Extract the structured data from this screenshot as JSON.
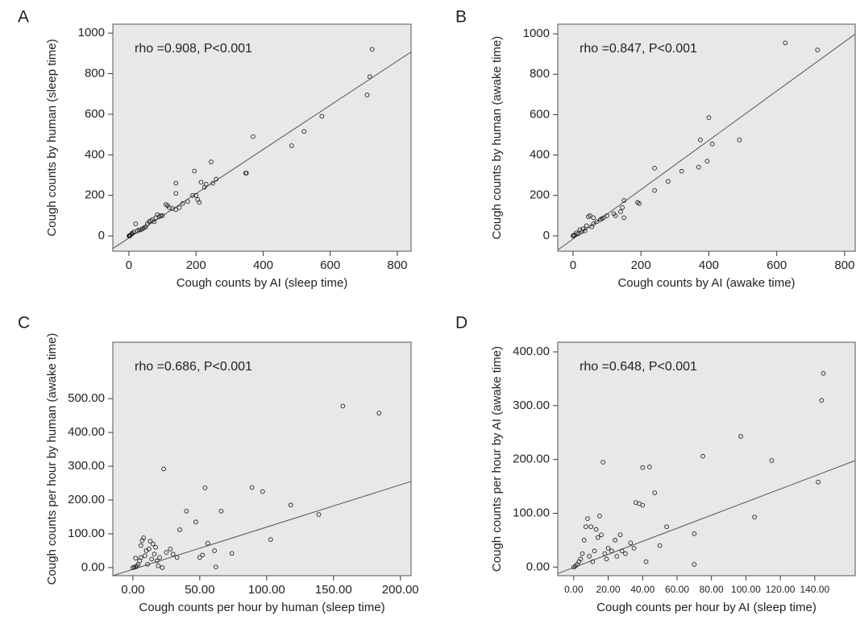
{
  "chart_data": [
    {
      "type": "scatter",
      "panel": "A",
      "annotation": "rho =0.908, P<0.001",
      "xlabel": "Cough counts by AI (sleep time)",
      "ylabel": "Cough counts by human (sleep time)",
      "xlim": [
        -48,
        841
      ],
      "ylim": [
        -75,
        1044
      ],
      "xticks": [
        0,
        200,
        400,
        600,
        800
      ],
      "yticks": [
        0,
        200,
        400,
        600,
        800,
        1000
      ],
      "x": [
        725,
        718,
        710,
        575,
        522,
        485,
        370,
        350,
        348,
        260,
        250,
        245,
        225,
        215,
        195,
        200,
        205,
        210,
        190,
        175,
        160,
        140,
        140,
        140,
        120,
        115,
        110,
        100,
        90,
        80,
        70,
        60,
        55,
        50,
        45,
        40,
        30,
        25,
        20,
        15,
        10,
        5,
        3,
        2,
        1,
        0,
        8,
        35,
        65,
        75,
        85,
        95,
        130,
        150,
        230
      ],
      "y": [
        920,
        785,
        695,
        590,
        515,
        445,
        490,
        310,
        310,
        280,
        260,
        365,
        240,
        265,
        320,
        200,
        180,
        165,
        200,
        170,
        160,
        210,
        260,
        130,
        140,
        150,
        155,
        100,
        95,
        90,
        80,
        70,
        60,
        45,
        40,
        35,
        30,
        25,
        60,
        20,
        15,
        5,
        3,
        0,
        2,
        0,
        10,
        30,
        75,
        70,
        105,
        100,
        135,
        140,
        255
      ],
      "trend_line": {
        "x": [
          -48,
          841
        ],
        "y": [
          -62,
          907
        ]
      }
    },
    {
      "type": "scatter",
      "panel": "B",
      "annotation": "rho =0.847, P<0.001",
      "xlabel": "Cough counts by AI (awake time)",
      "ylabel": "Cough counts by human (awake time)",
      "xlim": [
        -45,
        831
      ],
      "ylim": [
        -76,
        1048
      ],
      "xticks": [
        0,
        200,
        400,
        600,
        800
      ],
      "yticks": [
        0,
        200,
        400,
        600,
        800,
        1000
      ],
      "x": [
        625,
        720,
        400,
        375,
        410,
        490,
        395,
        370,
        320,
        280,
        240,
        240,
        195,
        190,
        150,
        145,
        150,
        140,
        120,
        100,
        90,
        80,
        70,
        60,
        50,
        45,
        40,
        30,
        20,
        10,
        5,
        0,
        2,
        60,
        55,
        35,
        15,
        25,
        85,
        125
      ],
      "y": [
        955,
        920,
        585,
        475,
        455,
        475,
        370,
        340,
        320,
        270,
        335,
        225,
        160,
        165,
        175,
        140,
        90,
        120,
        110,
        100,
        90,
        80,
        70,
        60,
        100,
        95,
        50,
        35,
        30,
        15,
        5,
        0,
        2,
        90,
        45,
        25,
        10,
        20,
        85,
        100
      ],
      "trend_line": {
        "x": [
          -45,
          831
        ],
        "y": [
          -70,
          999
        ]
      }
    },
    {
      "type": "scatter",
      "panel": "C",
      "annotation": "rho =0.686, P<0.001",
      "xlabel": "Cough counts per hour by human (sleep time)",
      "ylabel": "Cough counts per hour by human (awake time)",
      "xlim": [
        -15,
        208
      ],
      "ylim": [
        -24,
        667
      ],
      "xticks": [
        {
          "value": 0,
          "label": "0.00"
        },
        {
          "value": 50,
          "label": "50.00"
        },
        {
          "value": 100,
          "label": "100.00"
        },
        {
          "value": 150,
          "label": "150.00"
        },
        {
          "value": 200,
          "label": "200.00"
        }
      ],
      "yticks": [
        {
          "value": 0,
          "label": "0.00"
        },
        {
          "value": 100,
          "label": "100.00"
        },
        {
          "value": 200,
          "label": "200.00"
        },
        {
          "value": 300,
          "label": "300.00"
        },
        {
          "value": 400,
          "label": "400.00"
        },
        {
          "value": 500,
          "label": "500.00"
        }
      ],
      "x": [
        157,
        184,
        139,
        118,
        103,
        97,
        89,
        74,
        66,
        61,
        62,
        56,
        54,
        52,
        50,
        47,
        40,
        35,
        33,
        30,
        28,
        25,
        23,
        20,
        18,
        17,
        15,
        13,
        12,
        10,
        8,
        7,
        6,
        5,
        4,
        3,
        2,
        1,
        0,
        2,
        9,
        14,
        22,
        11,
        16,
        6,
        19
      ],
      "y": [
        478,
        457,
        157,
        185,
        83,
        225,
        237,
        42,
        167,
        50,
        2,
        72,
        236,
        37,
        30,
        135,
        167,
        112,
        30,
        40,
        55,
        45,
        292,
        30,
        20,
        60,
        70,
        78,
        55,
        50,
        88,
        80,
        30,
        20,
        10,
        5,
        2,
        1,
        0,
        28,
        35,
        25,
        0,
        10,
        40,
        65,
        5
      ],
      "trend_line": {
        "x": [
          -15,
          208
        ],
        "y": [
          -24,
          255
        ]
      }
    },
    {
      "type": "scatter",
      "panel": "D",
      "annotation": "rho =0.648, P<0.001",
      "xlabel": "Cough counts per hour by AI (sleep time)",
      "ylabel": "Cough counts per hour by AI (awake time)",
      "xlim": [
        -9.3,
        163.5
      ],
      "ylim": [
        -16,
        418
      ],
      "xticks": [
        {
          "value": 0,
          "label": "0.00"
        },
        {
          "value": 20,
          "label": "20.00"
        },
        {
          "value": 40,
          "label": "40.00"
        },
        {
          "value": 60,
          "label": "60.00"
        },
        {
          "value": 80,
          "label": "80.00"
        },
        {
          "value": 100,
          "label": "100.00"
        },
        {
          "value": 120,
          "label": "120.00"
        },
        {
          "value": 140,
          "label": "140.00"
        }
      ],
      "yticks": [
        {
          "value": 0,
          "label": "0.00"
        },
        {
          "value": 100,
          "label": "100.00"
        },
        {
          "value": 200,
          "label": "200.00"
        },
        {
          "value": 300,
          "label": "300.00"
        },
        {
          "value": 400,
          "label": "400.00"
        }
      ],
      "x": [
        145,
        144,
        142,
        115,
        97,
        105,
        75,
        70,
        70,
        54,
        50,
        47,
        44,
        40,
        38,
        40,
        36,
        33,
        30,
        28,
        25,
        22,
        20,
        18,
        17,
        15,
        14,
        13,
        12,
        10,
        8,
        7,
        6,
        5,
        4,
        3,
        2,
        1,
        0,
        9,
        11,
        16,
        19,
        24,
        27,
        35,
        42
      ],
      "y": [
        360,
        310,
        158,
        198,
        243,
        93,
        206,
        62,
        5,
        75,
        40,
        138,
        186,
        185,
        118,
        115,
        120,
        45,
        25,
        30,
        20,
        30,
        35,
        25,
        195,
        95,
        55,
        70,
        30,
        75,
        90,
        75,
        50,
        25,
        15,
        10,
        5,
        2,
        0,
        20,
        10,
        60,
        15,
        50,
        60,
        35,
        10
      ],
      "trend_line": {
        "x": [
          -9.3,
          163.5
        ],
        "y": [
          -12,
          198
        ]
      }
    }
  ]
}
